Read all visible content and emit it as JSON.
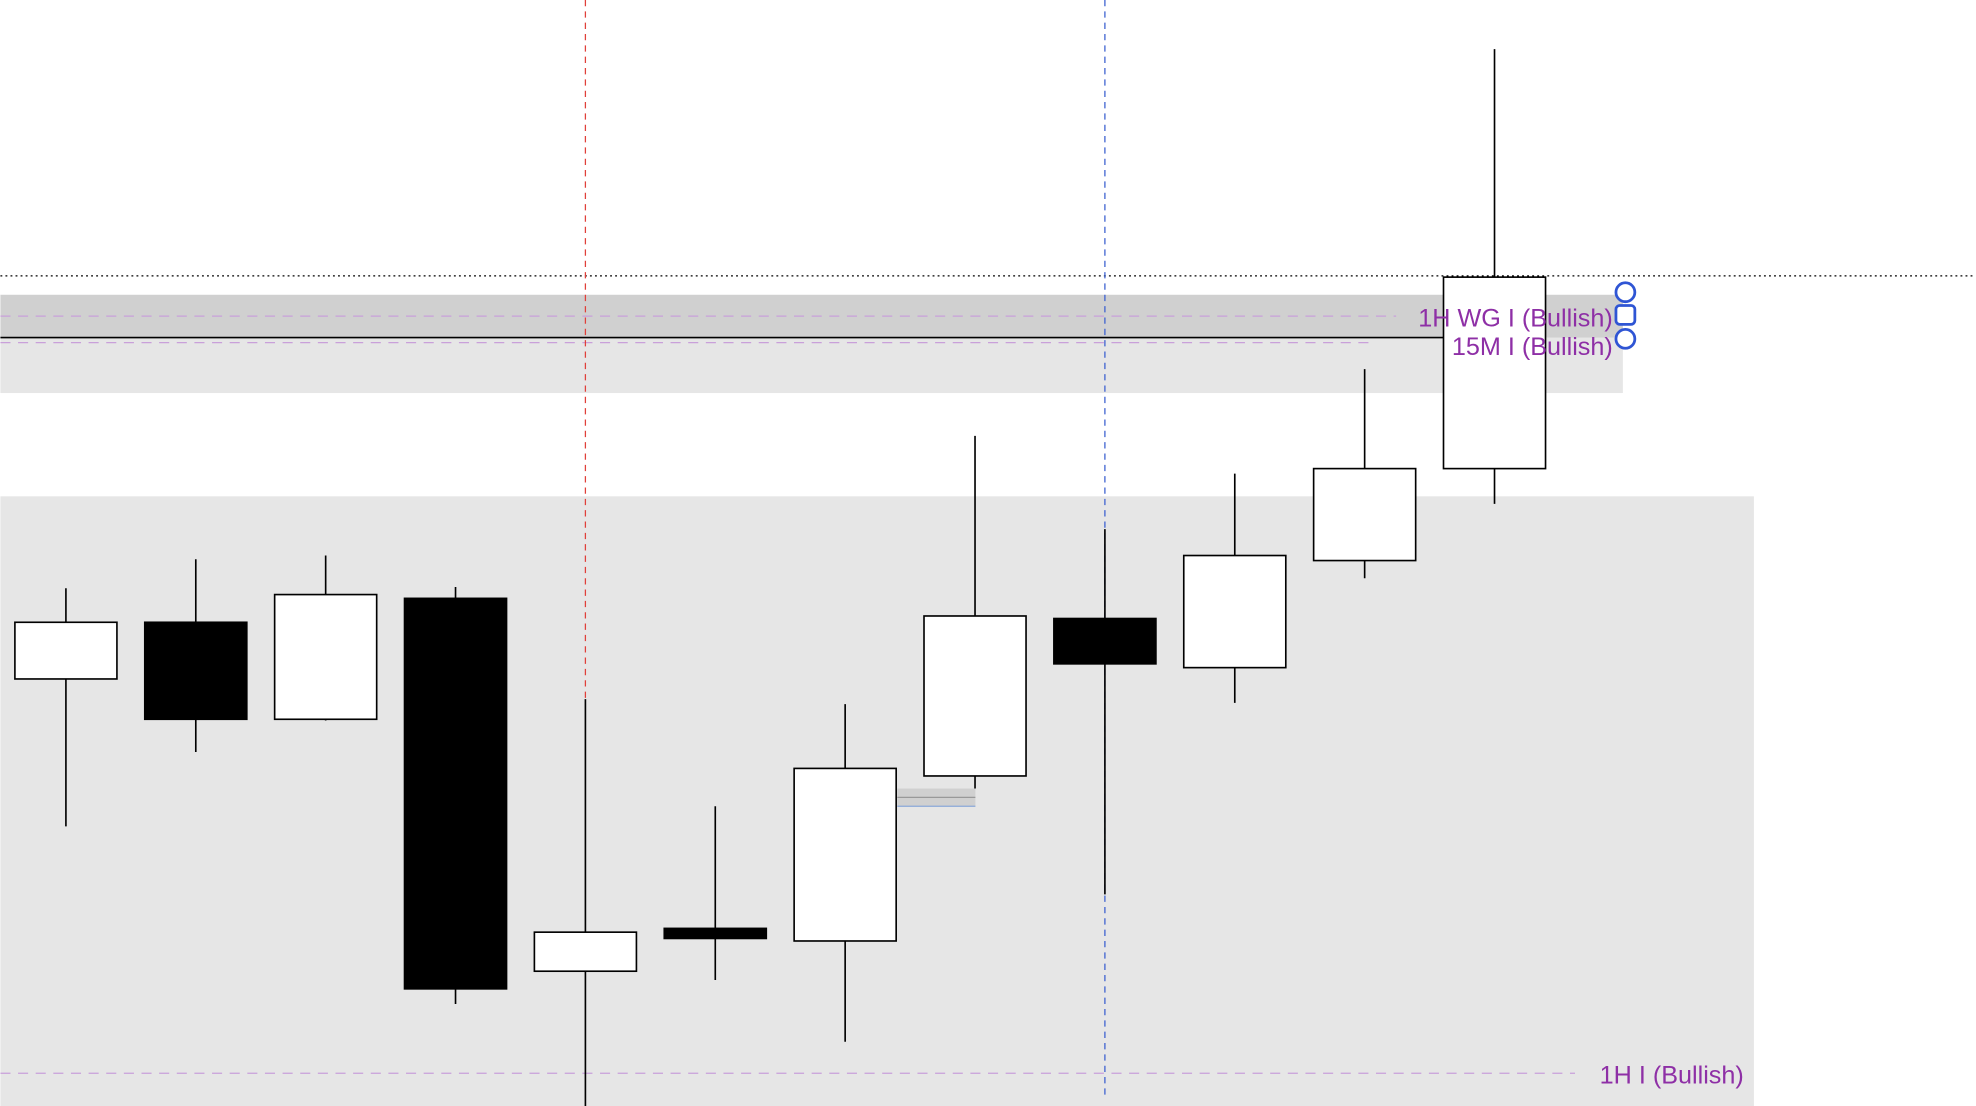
{
  "chart_data": {
    "type": "candlestick",
    "title": "",
    "xlabel": "",
    "ylabel": "",
    "grid": false,
    "candles": [
      {
        "open": 339,
        "high": 411,
        "low": 222,
        "close": 384
      },
      {
        "open": 384,
        "high": 434,
        "low": 281,
        "close": 307
      },
      {
        "open": 307,
        "high": 437,
        "low": 306,
        "close": 406
      },
      {
        "open": 403,
        "high": 412,
        "low": 81,
        "close": 93
      },
      {
        "open": 107,
        "high": 323,
        "low": 0,
        "close": 138
      },
      {
        "open": 141,
        "high": 238,
        "low": 100,
        "close": 133
      },
      {
        "open": 131,
        "high": 319,
        "low": 51,
        "close": 268
      },
      {
        "open": 262,
        "high": 532,
        "low": 252,
        "close": 389
      },
      {
        "open": 387,
        "high": 458,
        "low": 168,
        "close": 351
      },
      {
        "open": 348,
        "high": 502,
        "low": 320,
        "close": 437
      },
      {
        "open": 433,
        "high": 585,
        "low": 419,
        "close": 506
      },
      {
        "open": 506,
        "high": 839,
        "low": 478,
        "close": 658
      }
    ],
    "levels": [
      {
        "label": "1H WG I (Bullish)",
        "value": 627,
        "zone": [
          610,
          644
        ],
        "color": "#8e2fa6"
      },
      {
        "label": "15M I (Bullish)",
        "value": 606,
        "zone": [
          566,
          610
        ],
        "color": "#8e2fa6"
      },
      {
        "label": "1H I (Bullish)",
        "value": 26,
        "zone": [
          0,
          484
        ],
        "color": "#8e2fa6"
      }
    ],
    "reference_line": 659,
    "vertical_markers": [
      {
        "candle_index": 4,
        "color": "#e0403a"
      },
      {
        "candle_index": 8,
        "color": "#3a5fcf"
      }
    ],
    "colors": {
      "bull": "#ffffff",
      "bear": "#000000",
      "zone_dark": "#d0d0d0",
      "zone_light": "#e6e6e6",
      "handle": "#2f55d4"
    }
  }
}
